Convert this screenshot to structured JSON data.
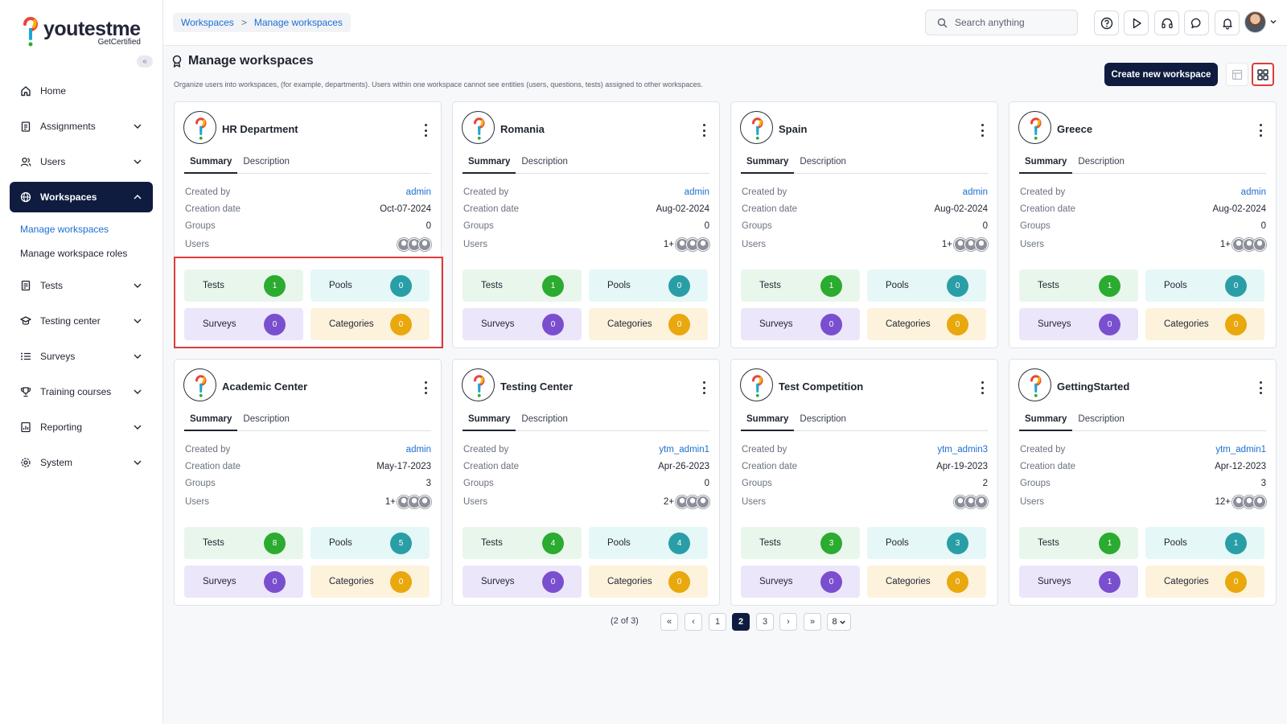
{
  "app": {
    "logo_text": "youtestme",
    "logo_sub": "GetCertified"
  },
  "sidebar": {
    "items": [
      {
        "label": "Home",
        "icon": "home-icon"
      },
      {
        "label": "Assignments",
        "icon": "clipboard-icon"
      },
      {
        "label": "Users",
        "icon": "users-icon"
      },
      {
        "label": "Workspaces",
        "icon": "globe-icon"
      },
      {
        "label": "Tests",
        "icon": "test-document-icon"
      },
      {
        "label": "Testing center",
        "icon": "graduation-cap-icon"
      },
      {
        "label": "Surveys",
        "icon": "list-icon"
      },
      {
        "label": "Training courses",
        "icon": "trophy-icon"
      },
      {
        "label": "Reporting",
        "icon": "report-icon"
      },
      {
        "label": "System",
        "icon": "gear-icon"
      }
    ],
    "sub_items": [
      "Manage workspaces",
      "Manage workspace roles"
    ]
  },
  "breadcrumb": {
    "first": "Workspaces",
    "separator": ">",
    "second": "Manage workspaces"
  },
  "search": {
    "placeholder": "Search anything"
  },
  "page": {
    "title": "Manage workspaces",
    "description": "Organize users into workspaces, (for example, departments). Users within one workspace cannot see entities (users, questions, tests) assigned to other workspaces.",
    "create_button": "Create new workspace"
  },
  "labels": {
    "summary": "Summary",
    "description": "Description",
    "created_by": "Created by",
    "creation_date": "Creation date",
    "groups": "Groups",
    "users": "Users",
    "tests": "Tests",
    "pools": "Pools",
    "surveys": "Surveys",
    "categories": "Categories"
  },
  "workspaces": [
    {
      "name": "HR Department",
      "created_by": "admin",
      "creation_date": "Oct-07-2024",
      "groups": "0",
      "users_count": "",
      "tests": "1",
      "pools": "0",
      "surveys": "0",
      "categories": "0"
    },
    {
      "name": "Romania",
      "created_by": "admin",
      "creation_date": "Aug-02-2024",
      "groups": "0",
      "users_count": "1+",
      "tests": "1",
      "pools": "0",
      "surveys": "0",
      "categories": "0"
    },
    {
      "name": "Spain",
      "created_by": "admin",
      "creation_date": "Aug-02-2024",
      "groups": "0",
      "users_count": "1+",
      "tests": "1",
      "pools": "0",
      "surveys": "0",
      "categories": "0"
    },
    {
      "name": "Greece",
      "created_by": "admin",
      "creation_date": "Aug-02-2024",
      "groups": "0",
      "users_count": "1+",
      "tests": "1",
      "pools": "0",
      "surveys": "0",
      "categories": "0"
    },
    {
      "name": "Academic Center",
      "created_by": "admin",
      "creation_date": "May-17-2023",
      "groups": "3",
      "users_count": "1+",
      "tests": "8",
      "pools": "5",
      "surveys": "0",
      "categories": "0"
    },
    {
      "name": "Testing Center",
      "created_by": "ytm_admin1",
      "creation_date": "Apr-26-2023",
      "groups": "0",
      "users_count": "2+",
      "tests": "4",
      "pools": "4",
      "surveys": "0",
      "categories": "0"
    },
    {
      "name": "Test Competition",
      "created_by": "ytm_admin3",
      "creation_date": "Apr-19-2023",
      "groups": "2",
      "users_count": "",
      "tests": "3",
      "pools": "3",
      "surveys": "0",
      "categories": "0"
    },
    {
      "name": "GettingStarted",
      "created_by": "ytm_admin1",
      "creation_date": "Apr-12-2023",
      "groups": "3",
      "users_count": "12+",
      "tests": "1",
      "pools": "1",
      "surveys": "1",
      "categories": "0"
    }
  ],
  "pagination": {
    "info": "(2 of 3)",
    "first": "«",
    "prev": "‹",
    "pages": [
      "1",
      "2",
      "3"
    ],
    "current": "2",
    "next": "›",
    "last": "»",
    "page_size": "8"
  },
  "colors": {
    "primary": "#0f1c3f",
    "link": "#1c6fd1",
    "highlight": "#e03a3a",
    "badge_green": "#2bab2f",
    "badge_teal": "#2a9ea6",
    "badge_purple": "#7a4fcf",
    "badge_amber": "#e9a80d"
  }
}
